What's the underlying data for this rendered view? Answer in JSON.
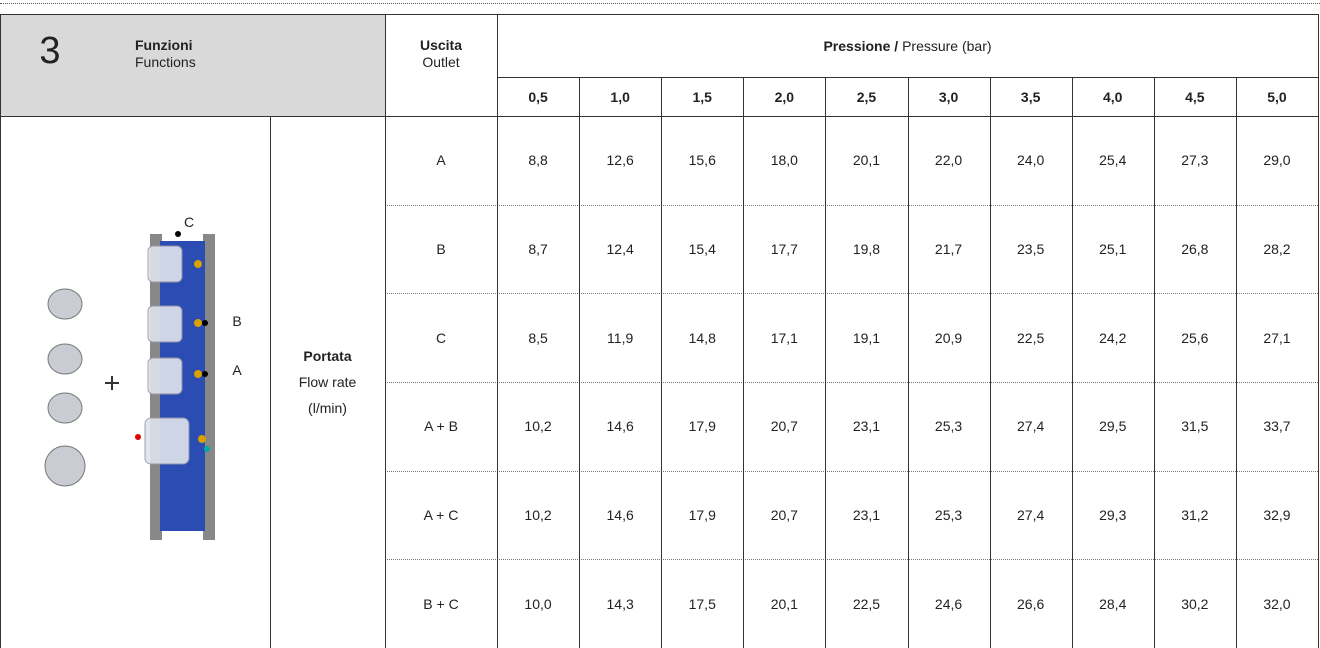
{
  "header": {
    "number": "3",
    "title": "Funzioni",
    "subtitle": "Functions",
    "outlet_title": "Uscita",
    "outlet_subtitle": "Outlet",
    "pressure_title_bold": "Pressione /",
    "pressure_title_rest": "Pressure (bar)"
  },
  "pressures": [
    "0,5",
    "1,0",
    "1,5",
    "2,0",
    "2,5",
    "3,0",
    "3,5",
    "4,0",
    "4,5",
    "5,0"
  ],
  "row_label": {
    "title": "Portata",
    "subtitle": "Flow rate",
    "unit": "(l/min)"
  },
  "diagram_labels": [
    "C",
    "B",
    "A"
  ],
  "rows": [
    {
      "outlet": "A",
      "values": [
        "8,8",
        "12,6",
        "15,6",
        "18,0",
        "20,1",
        "22,0",
        "24,0",
        "25,4",
        "27,3",
        "29,0"
      ]
    },
    {
      "outlet": "B",
      "values": [
        "8,7",
        "12,4",
        "15,4",
        "17,7",
        "19,8",
        "21,7",
        "23,5",
        "25,1",
        "26,8",
        "28,2"
      ]
    },
    {
      "outlet": "C",
      "values": [
        "8,5",
        "11,9",
        "14,8",
        "17,1",
        "19,1",
        "20,9",
        "22,5",
        "24,2",
        "25,6",
        "27,1"
      ]
    },
    {
      "outlet": "A + B",
      "values": [
        "10,2",
        "14,6",
        "17,9",
        "20,7",
        "23,1",
        "25,3",
        "27,4",
        "29,5",
        "31,5",
        "33,7"
      ]
    },
    {
      "outlet": "A + C",
      "values": [
        "10,2",
        "14,6",
        "17,9",
        "20,7",
        "23,1",
        "25,3",
        "27,4",
        "29,3",
        "31,2",
        "32,9"
      ]
    },
    {
      "outlet": "B + C",
      "values": [
        "10,0",
        "14,3",
        "17,5",
        "20,1",
        "22,5",
        "24,6",
        "26,6",
        "28,4",
        "30,2",
        "32,0"
      ]
    }
  ]
}
